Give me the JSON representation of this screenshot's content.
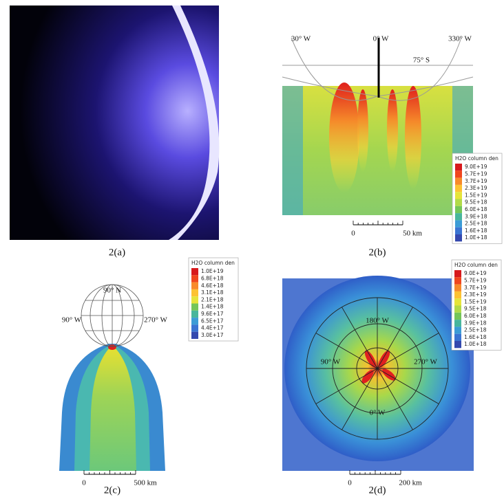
{
  "panels": [
    {
      "caption": "2(a)"
    },
    {
      "caption": "2(b)",
      "labels": [
        "30° W",
        "0° W",
        "330° W",
        "75° S"
      ],
      "legend": {
        "title": "H2O column den",
        "entries": [
          "9.0E+19",
          "5.7E+19",
          "3.7E+19",
          "2.3E+19",
          "1.5E+19",
          "9.5E+18",
          "6.0E+18",
          "3.9E+18",
          "2.5E+18",
          "1.6E+18",
          "1.0E+18"
        ]
      },
      "scale": [
        "0",
        "50 km"
      ]
    },
    {
      "caption": "2(c)",
      "labels": [
        "90° N",
        "90° W",
        "270° W"
      ],
      "legend": {
        "title": "H2O column den",
        "entries": [
          "1.0E+19",
          "6.8E+18",
          "4.6E+18",
          "3.1E+18",
          "2.1E+18",
          "1.4E+18",
          "9.6E+17",
          "6.5E+17",
          "4.4E+17",
          "3.0E+17"
        ]
      },
      "scale": [
        "0",
        "500 km"
      ]
    },
    {
      "caption": "2(d)",
      "labels": [
        "180° W",
        "90° W",
        "270° W",
        "0° W"
      ],
      "legend": {
        "title": "H2O column den",
        "entries": [
          "9.0E+19",
          "5.7E+19",
          "3.7E+19",
          "2.3E+19",
          "1.5E+19",
          "9.5E+18",
          "6.0E+18",
          "3.9E+18",
          "2.5E+18",
          "1.6E+18",
          "1.0E+18"
        ]
      },
      "scale": [
        "0",
        "200 km"
      ]
    }
  ]
}
